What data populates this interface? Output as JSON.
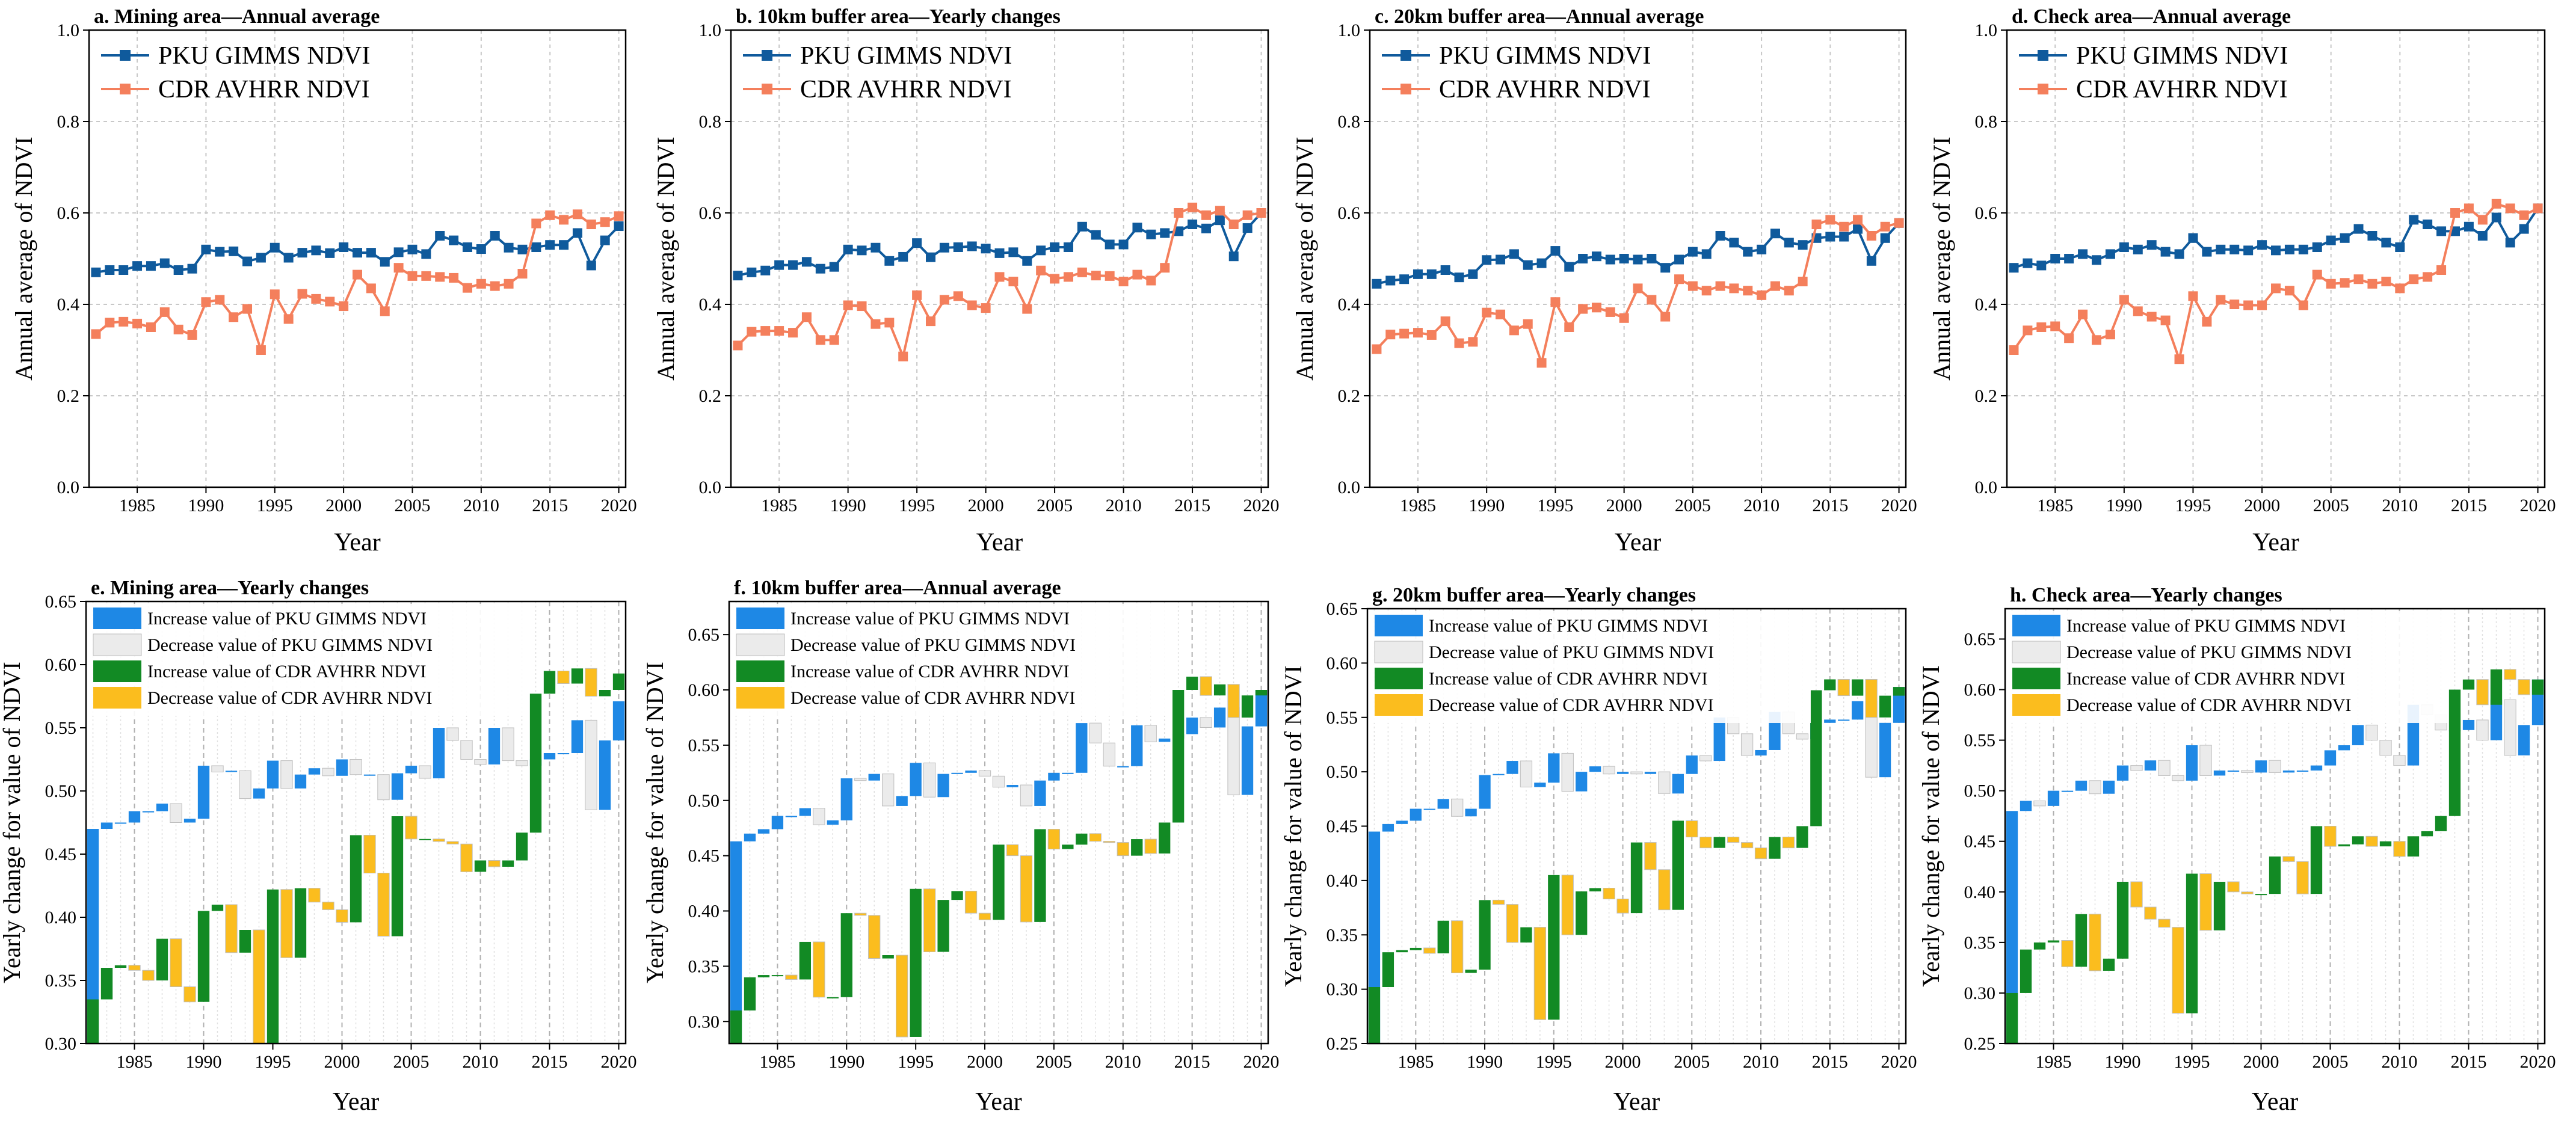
{
  "colors": {
    "gimms": "#0f5a9c",
    "cdr": "#f47f5c",
    "inc_gimms": "#1e88e5",
    "dec_gimms": "#ebebeb",
    "inc_cdr": "#128a24",
    "dec_cdr": "#fbbd1e"
  },
  "chart_data": [
    {
      "id": "a",
      "type": "line",
      "title": "a. Mining area—Annual average",
      "xlabel": "Year",
      "ylabel": "Annual average of NDVI",
      "xlim": [
        1981.5,
        2020.5
      ],
      "ylim": [
        0,
        1.0
      ],
      "xticks": [
        1985,
        1990,
        1995,
        2000,
        2005,
        2010,
        2015,
        2020
      ],
      "yticks": [
        0.0,
        0.2,
        0.4,
        0.6,
        0.8,
        1.0
      ],
      "x": [
        1982,
        1983,
        1984,
        1985,
        1986,
        1987,
        1988,
        1989,
        1990,
        1991,
        1992,
        1993,
        1994,
        1995,
        1996,
        1997,
        1998,
        1999,
        2000,
        2001,
        2002,
        2003,
        2004,
        2005,
        2006,
        2007,
        2008,
        2009,
        2010,
        2011,
        2012,
        2013,
        2014,
        2015,
        2016,
        2017,
        2018,
        2019,
        2020
      ],
      "legend": [
        "PKU GIMMS NDVI",
        "CDR AVHRR NDVI"
      ],
      "series": [
        {
          "name": "PKU GIMMS NDVI",
          "values": [
            0.47,
            0.475,
            0.475,
            0.484,
            0.484,
            0.49,
            0.475,
            0.478,
            0.52,
            0.515,
            0.516,
            0.494,
            0.502,
            0.524,
            0.502,
            0.513,
            0.518,
            0.512,
            0.525,
            0.513,
            0.513,
            0.493,
            0.514,
            0.52,
            0.51,
            0.55,
            0.54,
            0.525,
            0.521,
            0.55,
            0.524,
            0.52,
            0.525,
            0.53,
            0.53,
            0.556,
            0.485,
            0.54,
            0.571
          ]
        },
        {
          "name": "CDR AVHRR NDVI",
          "values": [
            0.335,
            0.36,
            0.362,
            0.358,
            0.35,
            0.383,
            0.345,
            0.333,
            0.405,
            0.41,
            0.372,
            0.39,
            0.3,
            0.422,
            0.368,
            0.423,
            0.412,
            0.406,
            0.396,
            0.465,
            0.435,
            0.385,
            0.48,
            0.462,
            0.462,
            0.46,
            0.458,
            0.436,
            0.445,
            0.44,
            0.445,
            0.467,
            0.577,
            0.595,
            0.585,
            0.597,
            0.575,
            0.58,
            0.593
          ]
        }
      ]
    },
    {
      "id": "b",
      "type": "line",
      "title": "b. 10km buffer area—Yearly changes",
      "xlabel": "Year",
      "ylabel": "Annual average of NDVI",
      "xlim": [
        1981.5,
        2020.5
      ],
      "ylim": [
        0,
        1.0
      ],
      "xticks": [
        1985,
        1990,
        1995,
        2000,
        2005,
        2010,
        2015,
        2020
      ],
      "yticks": [
        0.0,
        0.2,
        0.4,
        0.6,
        0.8,
        1.0
      ],
      "x": [
        1982,
        1983,
        1984,
        1985,
        1986,
        1987,
        1988,
        1989,
        1990,
        1991,
        1992,
        1993,
        1994,
        1995,
        1996,
        1997,
        1998,
        1999,
        2000,
        2001,
        2002,
        2003,
        2004,
        2005,
        2006,
        2007,
        2008,
        2009,
        2010,
        2011,
        2012,
        2013,
        2014,
        2015,
        2016,
        2017,
        2018,
        2019,
        2020
      ],
      "legend": [
        "PKU GIMMS NDVI",
        "CDR AVHRR NDVI"
      ],
      "series": [
        {
          "name": "PKU GIMMS NDVI",
          "values": [
            0.463,
            0.47,
            0.474,
            0.486,
            0.486,
            0.493,
            0.478,
            0.482,
            0.52,
            0.518,
            0.524,
            0.495,
            0.504,
            0.534,
            0.503,
            0.524,
            0.525,
            0.527,
            0.522,
            0.512,
            0.514,
            0.495,
            0.518,
            0.525,
            0.525,
            0.57,
            0.552,
            0.531,
            0.531,
            0.568,
            0.553,
            0.556,
            0.56,
            0.575,
            0.566,
            0.584,
            0.505,
            0.567,
            0.6
          ]
        },
        {
          "name": "CDR AVHRR NDVI",
          "values": [
            0.31,
            0.34,
            0.342,
            0.342,
            0.338,
            0.372,
            0.322,
            0.322,
            0.398,
            0.396,
            0.357,
            0.36,
            0.286,
            0.42,
            0.363,
            0.41,
            0.418,
            0.398,
            0.392,
            0.46,
            0.45,
            0.39,
            0.474,
            0.456,
            0.46,
            0.47,
            0.463,
            0.462,
            0.45,
            0.465,
            0.452,
            0.48,
            0.6,
            0.612,
            0.595,
            0.605,
            0.575,
            0.595,
            0.6
          ]
        }
      ]
    },
    {
      "id": "c",
      "type": "line",
      "title": "c. 20km buffer area—Annual average",
      "xlabel": "Year",
      "ylabel": "Annual average of NDVI",
      "xlim": [
        1981.5,
        2020.5
      ],
      "ylim": [
        0,
        1.0
      ],
      "xticks": [
        1985,
        1990,
        1995,
        2000,
        2005,
        2010,
        2015,
        2020
      ],
      "yticks": [
        0.0,
        0.2,
        0.4,
        0.6,
        0.8,
        1.0
      ],
      "x": [
        1982,
        1983,
        1984,
        1985,
        1986,
        1987,
        1988,
        1989,
        1990,
        1991,
        1992,
        1993,
        1994,
        1995,
        1996,
        1997,
        1998,
        1999,
        2000,
        2001,
        2002,
        2003,
        2004,
        2005,
        2006,
        2007,
        2008,
        2009,
        2010,
        2011,
        2012,
        2013,
        2014,
        2015,
        2016,
        2017,
        2018,
        2019,
        2020
      ],
      "legend": [
        "PKU GIMMS NDVI",
        "CDR AVHRR NDVI"
      ],
      "series": [
        {
          "name": "PKU GIMMS NDVI",
          "values": [
            0.445,
            0.452,
            0.455,
            0.466,
            0.466,
            0.475,
            0.459,
            0.466,
            0.497,
            0.498,
            0.51,
            0.486,
            0.49,
            0.517,
            0.482,
            0.5,
            0.505,
            0.498,
            0.5,
            0.498,
            0.5,
            0.48,
            0.498,
            0.515,
            0.51,
            0.55,
            0.535,
            0.515,
            0.52,
            0.555,
            0.535,
            0.53,
            0.545,
            0.548,
            0.548,
            0.565,
            0.495,
            0.545,
            0.578
          ]
        },
        {
          "name": "CDR AVHRR NDVI",
          "values": [
            0.302,
            0.334,
            0.336,
            0.338,
            0.333,
            0.363,
            0.315,
            0.318,
            0.382,
            0.378,
            0.343,
            0.357,
            0.272,
            0.405,
            0.35,
            0.39,
            0.393,
            0.383,
            0.37,
            0.435,
            0.41,
            0.373,
            0.455,
            0.44,
            0.43,
            0.44,
            0.435,
            0.43,
            0.42,
            0.44,
            0.43,
            0.45,
            0.575,
            0.585,
            0.57,
            0.585,
            0.55,
            0.57,
            0.578
          ]
        }
      ]
    },
    {
      "id": "d",
      "type": "line",
      "title": "d. Check area—Annual average",
      "xlabel": "Year",
      "ylabel": "Annual average of NDVI",
      "xlim": [
        1981.5,
        2020.5
      ],
      "ylim": [
        0,
        1.0
      ],
      "xticks": [
        1985,
        1990,
        1995,
        2000,
        2005,
        2010,
        2015,
        2020
      ],
      "yticks": [
        0.0,
        0.2,
        0.4,
        0.6,
        0.8,
        1.0
      ],
      "x": [
        1982,
        1983,
        1984,
        1985,
        1986,
        1987,
        1988,
        1989,
        1990,
        1991,
        1992,
        1993,
        1994,
        1995,
        1996,
        1997,
        1998,
        1999,
        2000,
        2001,
        2002,
        2003,
        2004,
        2005,
        2006,
        2007,
        2008,
        2009,
        2010,
        2011,
        2012,
        2013,
        2014,
        2015,
        2016,
        2017,
        2018,
        2019,
        2020
      ],
      "legend": [
        "PKU GIMMS NDVI",
        "CDR AVHRR NDVI"
      ],
      "series": [
        {
          "name": "PKU GIMMS NDVI",
          "values": [
            0.48,
            0.49,
            0.485,
            0.5,
            0.5,
            0.51,
            0.497,
            0.51,
            0.525,
            0.52,
            0.53,
            0.515,
            0.51,
            0.545,
            0.515,
            0.52,
            0.52,
            0.518,
            0.53,
            0.518,
            0.52,
            0.52,
            0.525,
            0.54,
            0.545,
            0.565,
            0.55,
            0.535,
            0.525,
            0.585,
            0.575,
            0.56,
            0.56,
            0.57,
            0.55,
            0.59,
            0.535,
            0.565,
            0.61
          ]
        },
        {
          "name": "CDR AVHRR NDVI",
          "values": [
            0.3,
            0.343,
            0.35,
            0.352,
            0.326,
            0.378,
            0.322,
            0.334,
            0.41,
            0.385,
            0.373,
            0.365,
            0.28,
            0.418,
            0.362,
            0.41,
            0.4,
            0.398,
            0.398,
            0.435,
            0.43,
            0.398,
            0.465,
            0.445,
            0.447,
            0.455,
            0.445,
            0.45,
            0.435,
            0.455,
            0.46,
            0.475,
            0.6,
            0.61,
            0.585,
            0.62,
            0.61,
            0.595,
            0.61
          ]
        }
      ]
    },
    {
      "id": "e",
      "type": "bar",
      "title": "e. Mining area—Yearly changes",
      "xlabel": "Year",
      "ylabel": "Yearly change for value of NDVI",
      "xlim": [
        1981.5,
        2020.5
      ],
      "ylim": [
        0.3,
        0.65
      ],
      "xticks": [
        1985,
        1990,
        1995,
        2000,
        2005,
        2010,
        2015,
        2020
      ],
      "yticks": [
        0.3,
        0.35,
        0.4,
        0.45,
        0.5,
        0.55,
        0.6,
        0.65
      ],
      "legend": [
        "Increase value of PKU GIMMS NDVI",
        "Decrease value of PKU GIMMS NDVI",
        "Increase value of CDR AVHRR NDVI",
        "Decrease value of CDR AVHRR NDVI"
      ],
      "series_ref": "a"
    },
    {
      "id": "f",
      "type": "bar",
      "title": "f. 10km buffer area—Annual average",
      "xlabel": "Year",
      "ylabel": "Yearly change for value of NDVI",
      "xlim": [
        1981.5,
        2020.5
      ],
      "ylim": [
        0.28,
        0.68
      ],
      "xticks": [
        1985,
        1990,
        1995,
        2000,
        2005,
        2010,
        2015,
        2020
      ],
      "yticks": [
        0.3,
        0.35,
        0.4,
        0.45,
        0.5,
        0.55,
        0.6,
        0.65
      ],
      "legend": [
        "Increase value of PKU GIMMS NDVI",
        "Decrease value of PKU GIMMS NDVI",
        "Increase value of CDR AVHRR NDVI",
        "Decrease value of CDR AVHRR NDVI"
      ],
      "series_ref": "b"
    },
    {
      "id": "g",
      "type": "bar",
      "title": "g. 20km buffer area—Yearly changes",
      "xlabel": "Year",
      "ylabel": "Yearly change for value of NDVI",
      "xlim": [
        1981.5,
        2020.5
      ],
      "ylim": [
        0.25,
        0.65
      ],
      "xticks": [
        1985,
        1990,
        1995,
        2000,
        2005,
        2010,
        2015,
        2020
      ],
      "yticks": [
        0.25,
        0.3,
        0.35,
        0.4,
        0.45,
        0.5,
        0.55,
        0.6,
        0.65
      ],
      "legend": [
        "Increase value of PKU GIMMS NDVI",
        "Decrease value of PKU GIMMS NDVI",
        "Increase value of CDR AVHRR NDVI",
        "Decrease value of CDR AVHRR NDVI"
      ],
      "series_ref": "c"
    },
    {
      "id": "h",
      "type": "bar",
      "title": "h. Check area—Yearly changes",
      "xlabel": "Year",
      "ylabel": "Yearly change for value of NDVI",
      "xlim": [
        1981.5,
        2020.5
      ],
      "ylim": [
        0.25,
        0.68
      ],
      "xticks": [
        1985,
        1990,
        1995,
        2000,
        2005,
        2010,
        2015,
        2020
      ],
      "yticks": [
        0.25,
        0.3,
        0.35,
        0.4,
        0.45,
        0.5,
        0.55,
        0.6,
        0.65
      ],
      "legend": [
        "Increase value of PKU GIMMS NDVI",
        "Decrease value of PKU GIMMS NDVI",
        "Increase value of CDR AVHRR NDVI",
        "Decrease value of CDR AVHRR NDVI"
      ],
      "series_ref": "d"
    }
  ]
}
